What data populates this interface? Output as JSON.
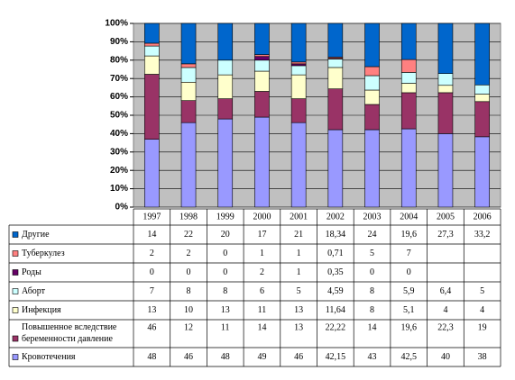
{
  "chart_data": {
    "type": "stacked_bar_100",
    "categories": [
      "1997",
      "1998",
      "1999",
      "2000",
      "2001",
      "2002",
      "2003",
      "2004",
      "2005",
      "2006"
    ],
    "ylim": [
      0,
      100
    ],
    "yticks": [
      {
        "value": 0,
        "label": "0%"
      },
      {
        "value": 10,
        "label": "10%"
      },
      {
        "value": 20,
        "label": "20%"
      },
      {
        "value": 30,
        "label": "30%"
      },
      {
        "value": 40,
        "label": "40%"
      },
      {
        "value": 50,
        "label": "50%"
      },
      {
        "value": 60,
        "label": "60%"
      },
      {
        "value": 70,
        "label": "70%"
      },
      {
        "value": 80,
        "label": "80%"
      },
      {
        "value": 90,
        "label": "90%"
      },
      {
        "value": 100,
        "label": "100%"
      }
    ],
    "series": [
      {
        "name": "Кровотечения",
        "color": "#9999ff",
        "values": [
          48,
          46,
          48,
          49,
          46,
          42.15,
          43,
          42.5,
          40,
          38
        ],
        "value_labels": [
          "48",
          "46",
          "48",
          "49",
          "46",
          "42,15",
          "43",
          "42,5",
          "40",
          "38"
        ]
      },
      {
        "name": "Повышенное вследствие беременности давление",
        "color": "#993366",
        "values": [
          46,
          12,
          11,
          14,
          13,
          22.22,
          14,
          19.6,
          22.3,
          19
        ],
        "value_labels": [
          "46",
          "12",
          "11",
          "14",
          "13",
          "22,22",
          "14",
          "19,6",
          "22,3",
          "19"
        ]
      },
      {
        "name": "Инфекция",
        "color": "#ffffcc",
        "values": [
          13,
          10,
          13,
          11,
          13,
          11.64,
          8,
          5.1,
          4,
          4
        ],
        "value_labels": [
          "13",
          "10",
          "13",
          "11",
          "13",
          "11,64",
          "8",
          "5,1",
          "4",
          "4"
        ]
      },
      {
        "name": "Аборт",
        "color": "#ccffff",
        "values": [
          7,
          8,
          8,
          6,
          5,
          4.59,
          8,
          5.9,
          6.4,
          5
        ],
        "value_labels": [
          "7",
          "8",
          "8",
          "6",
          "5",
          "4,59",
          "8",
          "5,9",
          "6,4",
          "5"
        ]
      },
      {
        "name": "Роды",
        "color": "#660066",
        "values": [
          0,
          0,
          0,
          2,
          1,
          0.35,
          0,
          0,
          null,
          null
        ],
        "value_labels": [
          "0",
          "0",
          "0",
          "2",
          "1",
          "0,35",
          "0",
          "0",
          null,
          null
        ]
      },
      {
        "name": "Туберкулез",
        "color": "#ff8080",
        "values": [
          2,
          2,
          0,
          1,
          1,
          0.71,
          5,
          7,
          null,
          null
        ],
        "value_labels": [
          "2",
          "2",
          "0",
          "1",
          "1",
          "0,71",
          "5",
          "7",
          null,
          null
        ]
      },
      {
        "name": "Другие",
        "color": "#0066cc",
        "values": [
          14,
          22,
          20,
          17,
          21,
          18.34,
          24,
          19.6,
          27.3,
          33.2
        ],
        "value_labels": [
          "14",
          "22",
          "20",
          "17",
          "21",
          "18,34",
          "24",
          "19,6",
          "27,3",
          "33,2"
        ]
      }
    ]
  }
}
